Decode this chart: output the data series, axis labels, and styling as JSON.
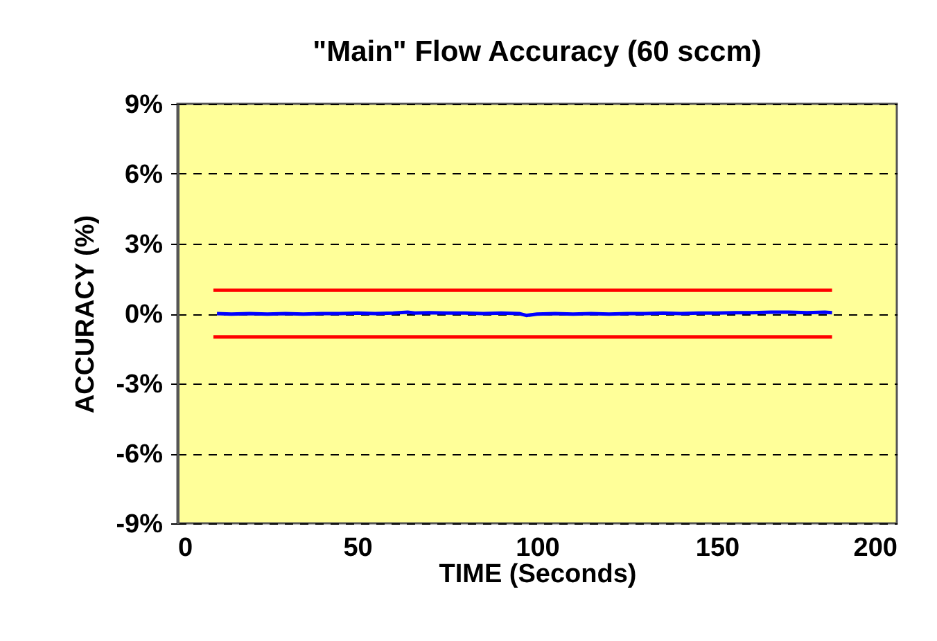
{
  "chart_data": {
    "type": "line",
    "title": "\"Main\" Flow Accuracy (60 sccm)",
    "xlabel": "TIME (Seconds)",
    "ylabel": "ACCURACY (%)",
    "xlim": [
      0,
      200
    ],
    "xticks": [
      0,
      50,
      100,
      150,
      200
    ],
    "ylim": [
      -9,
      9
    ],
    "yticks": [
      {
        "value": -9,
        "label": "-9%"
      },
      {
        "value": -6,
        "label": "-6%"
      },
      {
        "value": -3,
        "label": "-3%"
      },
      {
        "value": 0,
        "label": "0%"
      },
      {
        "value": 3,
        "label": "3%"
      },
      {
        "value": 6,
        "label": "6%"
      },
      {
        "value": 9,
        "label": "9%"
      }
    ],
    "grid": "y",
    "marker": "none",
    "series": [
      {
        "color": "#ff0000",
        "x": [
          10,
          182
        ],
        "values": [
          1,
          1
        ]
      },
      {
        "color": "#ff0000",
        "x": [
          10,
          182
        ],
        "values": [
          -1,
          -1
        ]
      },
      {
        "color": "#0000ff",
        "x": [
          11,
          15,
          20,
          25,
          30,
          35,
          40,
          45,
          50,
          55,
          60,
          64,
          66,
          70,
          75,
          80,
          85,
          90,
          95,
          97,
          100,
          105,
          110,
          115,
          120,
          125,
          130,
          135,
          140,
          145,
          150,
          155,
          160,
          165,
          170,
          175,
          180,
          182
        ],
        "values": [
          0,
          -0.02,
          0,
          -0.02,
          0,
          -0.02,
          0,
          0,
          0.02,
          0,
          0.02,
          0.06,
          0.02,
          0.04,
          0.02,
          0.02,
          0,
          0.02,
          0,
          -0.08,
          -0.02,
          0,
          -0.02,
          0,
          -0.02,
          0,
          0,
          0.02,
          0,
          0.02,
          0.02,
          0.04,
          0.04,
          0.06,
          0.06,
          0.04,
          0.06,
          0.04
        ]
      }
    ]
  }
}
